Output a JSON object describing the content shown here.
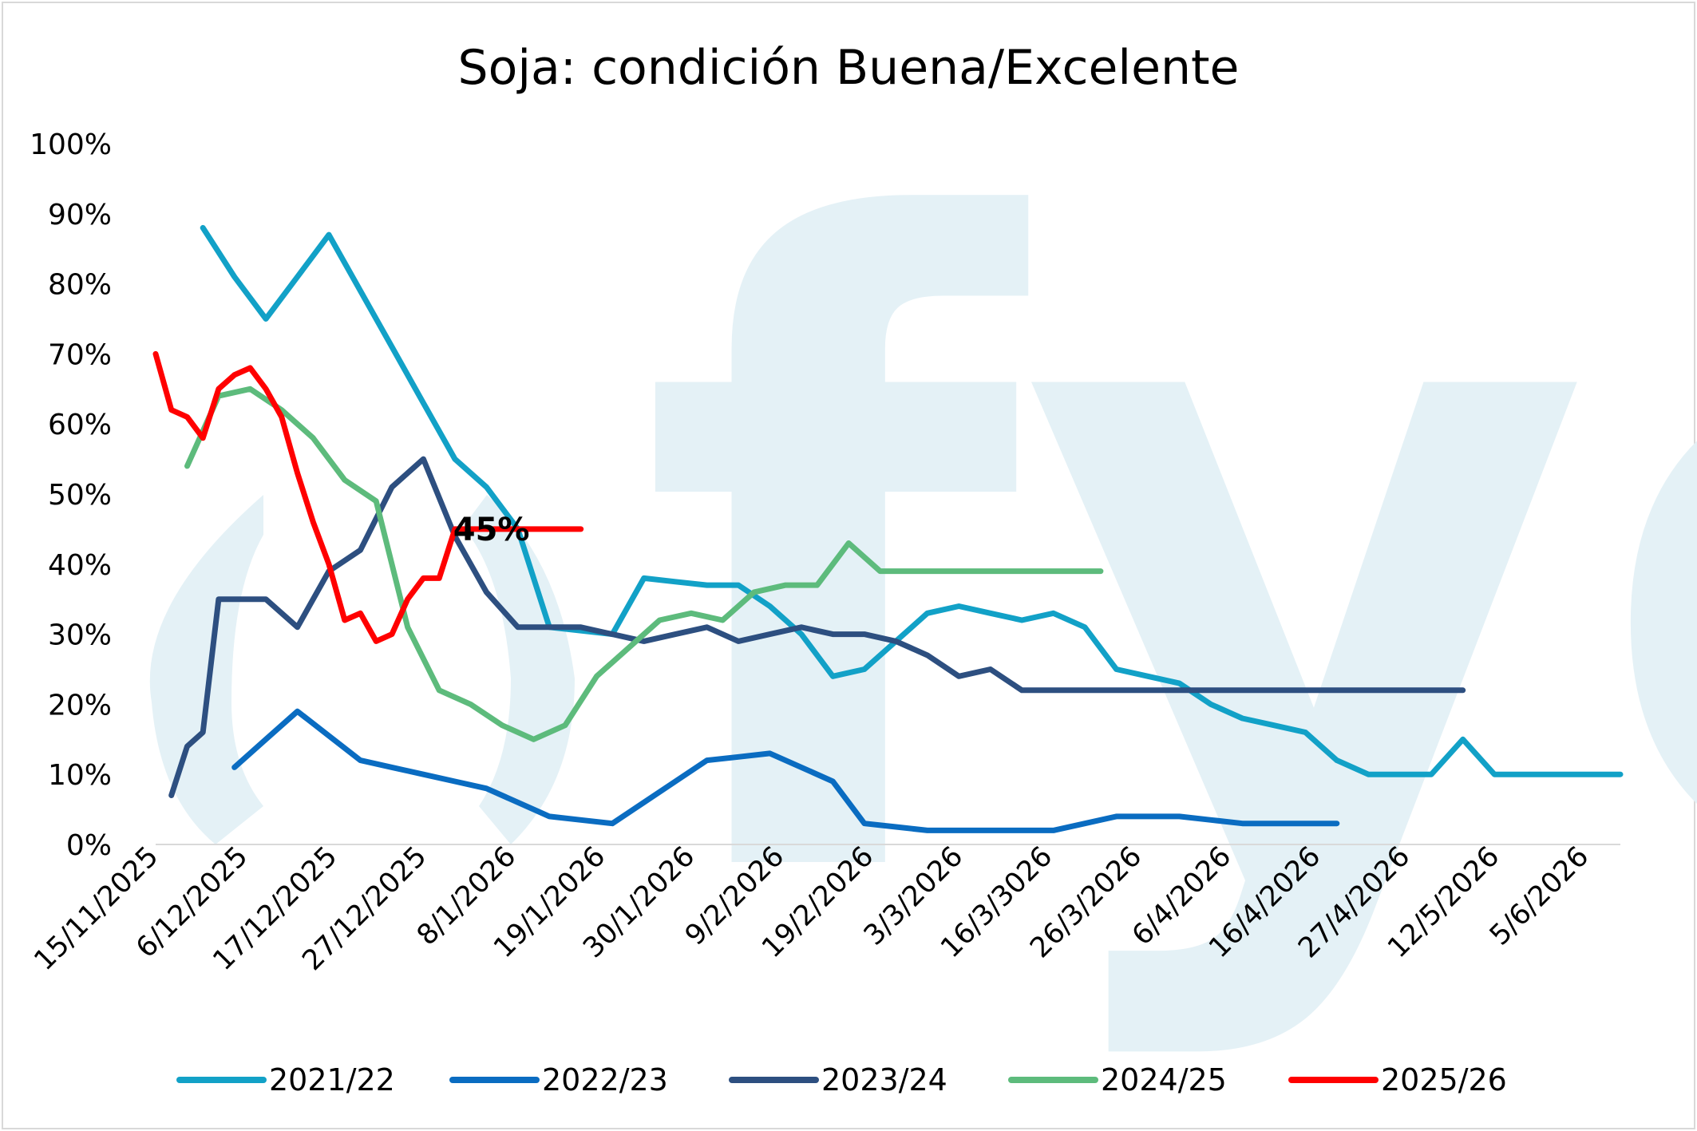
{
  "chart_data": {
    "type": "line",
    "title": "Soja: condición Buena/Excelente",
    "xlabel": "",
    "ylabel": "",
    "ylim": [
      0,
      100
    ],
    "yticks": [
      "0%",
      "10%",
      "20%",
      "30%",
      "40%",
      "50%",
      "60%",
      "70%",
      "80%",
      "90%",
      "100%"
    ],
    "xticks": [
      "15/11/2025",
      "6/12/2025",
      "17/12/2025",
      "27/12/2025",
      "8/1/2026",
      "19/1/2026",
      "30/1/2026",
      "9/2/2026",
      "19/2/2026",
      "3/3/2026",
      "16/3/3026",
      "26/3/2026",
      "6/4/2026",
      "16/4/2026",
      "27/4/2026",
      "12/5/2026",
      "5/6/2026"
    ],
    "grid": false,
    "legend_position": "bottom",
    "watermark": "fyo",
    "annotation": {
      "text": "45%",
      "series": "2025/26",
      "x": 27
    },
    "series": [
      {
        "name": "2021/22",
        "color": "#12a1c7",
        "x": [
          3,
          5,
          7,
          9,
          11,
          13,
          15,
          17,
          19,
          21,
          23,
          25,
          27,
          29,
          31,
          33,
          35,
          36,
          37,
          39,
          41,
          43,
          45,
          47,
          49,
          51,
          53,
          55,
          57,
          59,
          61,
          63,
          65,
          67,
          69,
          71,
          73,
          75,
          77,
          79,
          81,
          83,
          85,
          87,
          89,
          91,
          93
        ],
        "y": [
          88,
          81,
          75,
          81,
          87,
          79,
          71,
          63,
          55,
          51,
          45,
          31,
          30.5,
          30,
          38,
          37.5,
          37,
          37,
          37,
          34,
          30,
          24,
          25,
          29,
          33,
          34,
          33,
          32,
          33,
          31,
          25,
          24,
          23,
          20,
          18,
          17,
          16,
          12,
          10,
          10,
          10,
          15,
          10,
          10,
          10,
          10,
          10
        ]
      },
      {
        "name": "2022/23",
        "color": "#0a6cc1",
        "x": [
          5,
          7,
          9,
          11,
          13,
          15,
          17,
          19,
          21,
          23,
          25,
          27,
          29,
          31,
          33,
          35,
          37,
          39,
          41,
          43,
          45,
          47,
          49,
          51,
          53,
          55,
          57,
          59,
          61,
          63,
          65,
          67,
          69,
          71,
          73,
          75
        ],
        "y": [
          11,
          15,
          19,
          15.5,
          12,
          11,
          10,
          9,
          8,
          6,
          4,
          3.5,
          3,
          6,
          9,
          12,
          12.5,
          13,
          11,
          9,
          3,
          2.5,
          2,
          2,
          2,
          2,
          2,
          3,
          4,
          4,
          4,
          3.5,
          3,
          3,
          3,
          3
        ]
      },
      {
        "name": "2023/24",
        "color": "#2d4f80",
        "x": [
          1,
          2,
          3,
          4,
          5,
          7,
          9,
          11,
          13,
          15,
          17,
          19,
          21,
          23,
          25,
          27,
          29,
          31,
          33,
          35,
          37,
          39,
          41,
          43,
          45,
          47,
          49,
          51,
          53,
          55,
          57,
          59,
          61,
          63,
          65,
          67,
          69,
          71,
          73,
          75,
          77,
          78,
          79,
          80,
          81,
          82,
          83
        ],
        "y": [
          7,
          14,
          16,
          35,
          35,
          35,
          31,
          39,
          42,
          51,
          55,
          44,
          36,
          31,
          31,
          31,
          30,
          29,
          30,
          31,
          29,
          30,
          31,
          30,
          30,
          29,
          27,
          24,
          25,
          22,
          22,
          22,
          22,
          22,
          22,
          22,
          22,
          22,
          22,
          22,
          22,
          22,
          22,
          22,
          22,
          22,
          22
        ]
      },
      {
        "name": "2024/25",
        "color": "#5dbb7c",
        "x": [
          2,
          4,
          6,
          8,
          10,
          12,
          14,
          16,
          18,
          20,
          22,
          24,
          26,
          28,
          30,
          32,
          34,
          36,
          38,
          40,
          42,
          44,
          46,
          48,
          50,
          52,
          54,
          56,
          58,
          60
        ],
        "y": [
          54,
          64,
          65,
          62,
          58,
          52,
          49,
          31,
          22,
          20,
          17,
          15,
          17,
          24,
          28,
          32,
          33,
          32,
          36,
          37,
          37,
          43,
          39,
          39,
          39,
          39,
          39,
          39,
          39,
          39
        ]
      },
      {
        "name": "2025/26",
        "color": "#ff0000",
        "x": [
          0,
          1,
          2,
          3,
          4,
          5,
          6,
          7,
          8,
          9,
          10,
          11,
          12,
          13,
          14,
          15,
          16,
          17,
          18,
          19,
          20,
          21,
          22,
          23,
          24,
          25,
          26,
          27
        ],
        "y": [
          70,
          62,
          61,
          58,
          65,
          67,
          68,
          65,
          61,
          53,
          46,
          40,
          32,
          33,
          29,
          30,
          35,
          38,
          38,
          45,
          45,
          45,
          45,
          45,
          45,
          45,
          45,
          45
        ]
      }
    ]
  }
}
